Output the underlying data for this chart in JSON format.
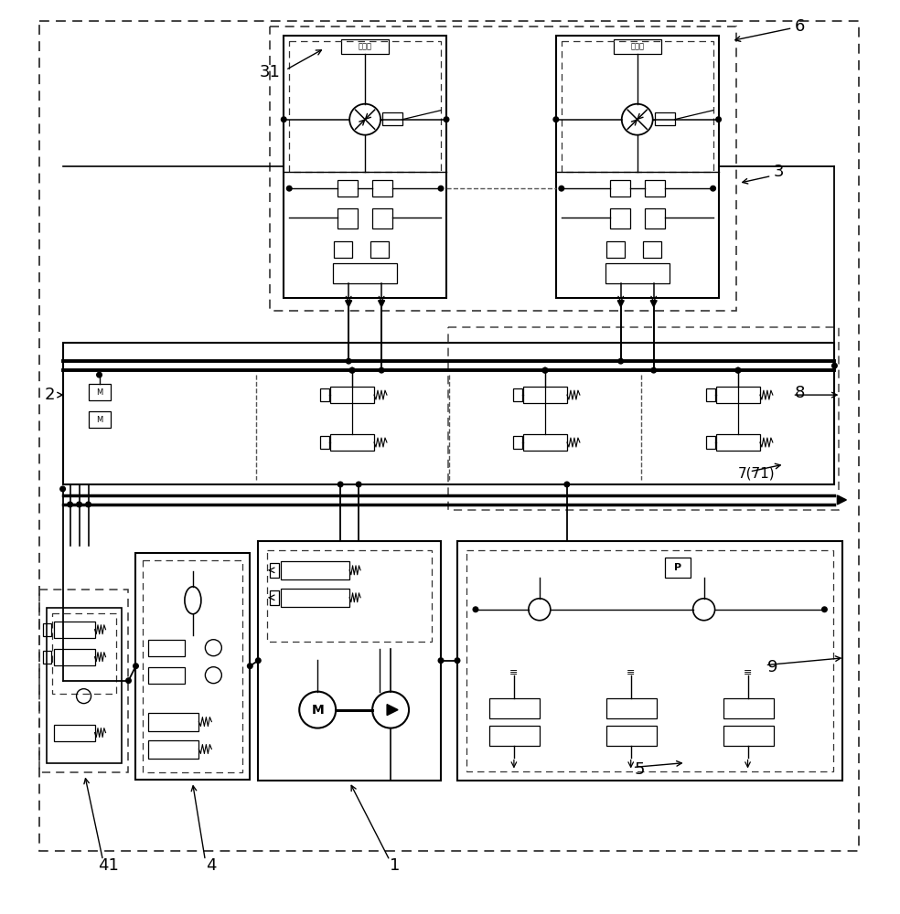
{
  "bg_color": "#ffffff",
  "line_color": "#000000",
  "jisu_label": "减速机",
  "motor_label": "M"
}
